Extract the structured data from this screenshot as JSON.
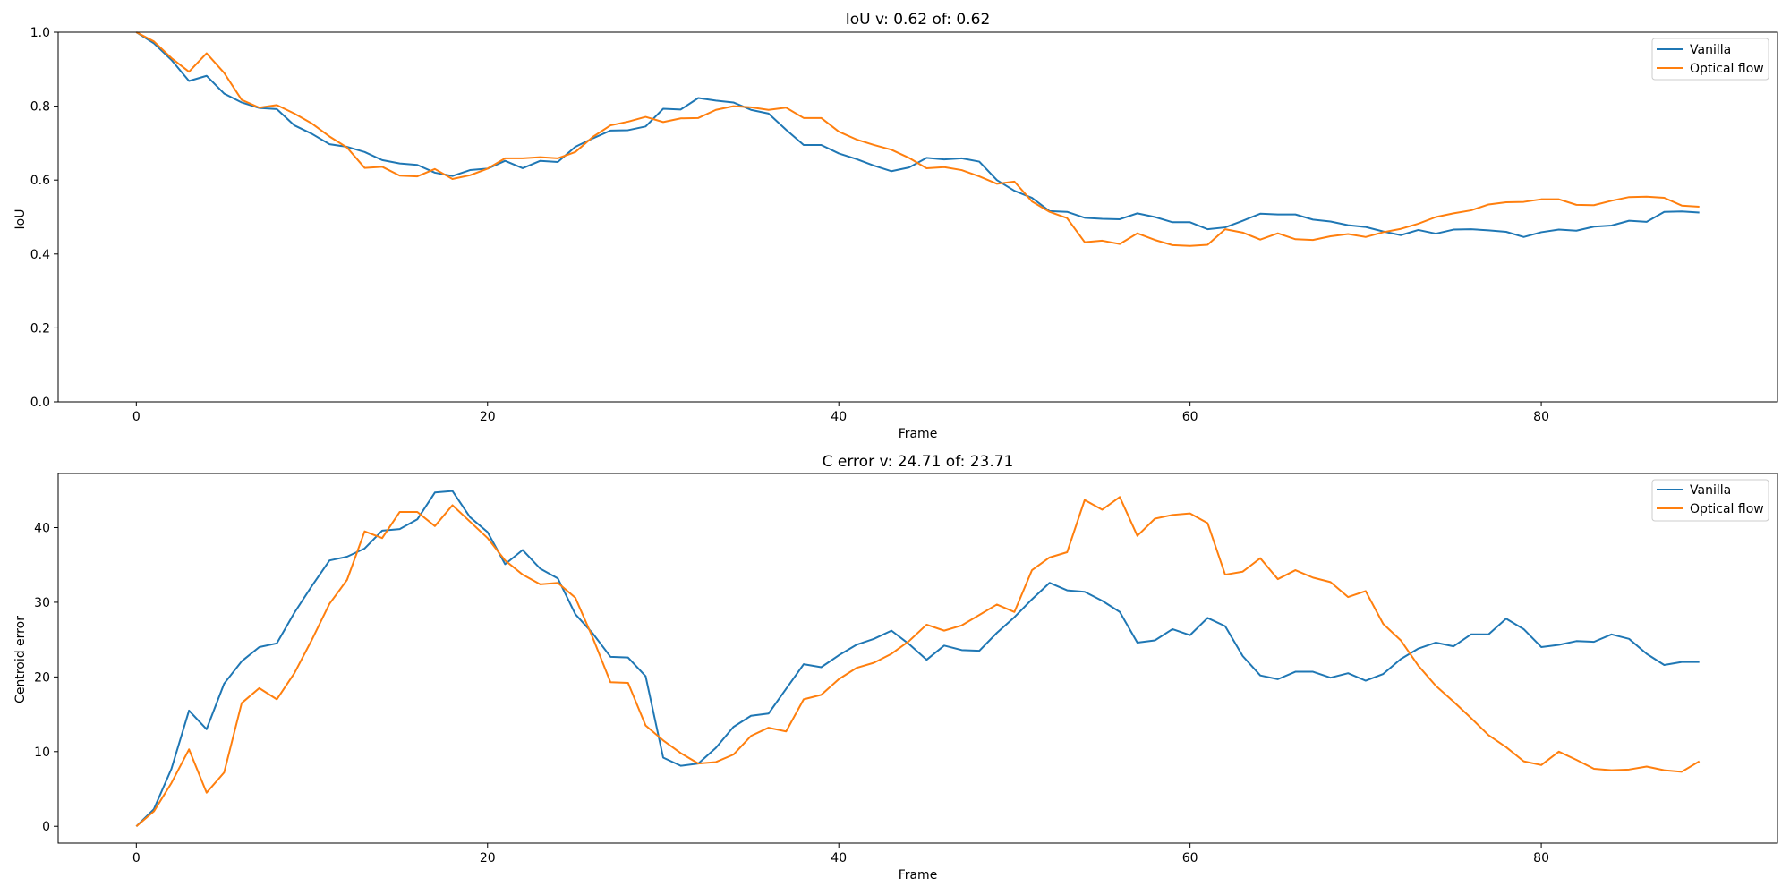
{
  "chart_data": [
    {
      "type": "line",
      "title": "IoU v: 0.62 of: 0.62",
      "xlabel": "Frame",
      "ylabel": "IoU",
      "xlim": [
        -4.45,
        93.45
      ],
      "ylim": [
        0.0,
        1.0
      ],
      "xticks": [
        0,
        20,
        40,
        60,
        80
      ],
      "yticks": [
        0.0,
        0.2,
        0.4,
        0.6,
        0.8,
        1.0
      ],
      "xtick_labels": [
        "0",
        "20",
        "40",
        "60",
        "80"
      ],
      "ytick_labels": [
        "0.0",
        "0.2",
        "0.4",
        "0.6",
        "0.8",
        "1.0"
      ],
      "grid": false,
      "legend_position": "top-right",
      "series": [
        {
          "name": "Vanilla",
          "color": "#1f77b4",
          "values": [
            1.0,
            0.97,
            0.925,
            0.868,
            0.882,
            0.834,
            0.81,
            0.795,
            0.792,
            0.748,
            0.725,
            0.697,
            0.69,
            0.676,
            0.654,
            0.645,
            0.641,
            0.62,
            0.611,
            0.627,
            0.631,
            0.652,
            0.632,
            0.652,
            0.649,
            0.69,
            0.713,
            0.734,
            0.735,
            0.745,
            0.793,
            0.791,
            0.822,
            0.815,
            0.81,
            0.79,
            0.78,
            0.736,
            0.695,
            0.695,
            0.672,
            0.657,
            0.639,
            0.624,
            0.634,
            0.66,
            0.656,
            0.659,
            0.65,
            0.6,
            0.571,
            0.552,
            0.516,
            0.514,
            0.498,
            0.495,
            0.494,
            0.51,
            0.5,
            0.486,
            0.486,
            0.467,
            0.472,
            0.49,
            0.509,
            0.507,
            0.507,
            0.493,
            0.488,
            0.478,
            0.473,
            0.461,
            0.451,
            0.465,
            0.455,
            0.466,
            0.467,
            0.464,
            0.46,
            0.446,
            0.459,
            0.466,
            0.463,
            0.474,
            0.477,
            0.49,
            0.487,
            0.514,
            0.515,
            0.512
          ]
        },
        {
          "name": "Optical flow",
          "color": "#ff7f0e",
          "values": [
            1.0,
            0.975,
            0.93,
            0.893,
            0.943,
            0.89,
            0.817,
            0.796,
            0.803,
            0.78,
            0.753,
            0.718,
            0.688,
            0.633,
            0.636,
            0.612,
            0.61,
            0.63,
            0.603,
            0.613,
            0.631,
            0.659,
            0.659,
            0.662,
            0.659,
            0.676,
            0.717,
            0.748,
            0.758,
            0.771,
            0.757,
            0.767,
            0.768,
            0.79,
            0.8,
            0.797,
            0.79,
            0.796,
            0.768,
            0.768,
            0.731,
            0.71,
            0.695,
            0.682,
            0.66,
            0.632,
            0.635,
            0.627,
            0.61,
            0.59,
            0.596,
            0.542,
            0.514,
            0.497,
            0.432,
            0.436,
            0.427,
            0.456,
            0.438,
            0.424,
            0.422,
            0.425,
            0.467,
            0.458,
            0.439,
            0.456,
            0.44,
            0.438,
            0.448,
            0.454,
            0.446,
            0.459,
            0.468,
            0.482,
            0.5,
            0.51,
            0.518,
            0.534,
            0.54,
            0.541,
            0.548,
            0.548,
            0.533,
            0.532,
            0.544,
            0.554,
            0.555,
            0.552,
            0.531,
            0.528
          ]
        }
      ]
    },
    {
      "type": "line",
      "title": "C error v: 24.71 of: 23.71",
      "xlabel": "Frame",
      "ylabel": "Centroid error",
      "xlim": [
        -4.45,
        93.45
      ],
      "ylim": [
        -2.25,
        47.25
      ],
      "xticks": [
        0,
        20,
        40,
        60,
        80
      ],
      "yticks": [
        0,
        10,
        20,
        30,
        40
      ],
      "xtick_labels": [
        "0",
        "20",
        "40",
        "60",
        "80"
      ],
      "ytick_labels": [
        "0",
        "10",
        "20",
        "30",
        "40"
      ],
      "grid": false,
      "legend_position": "top-right",
      "series": [
        {
          "name": "Vanilla",
          "color": "#1f77b4",
          "values": [
            0.0,
            2.3,
            7.7,
            15.5,
            13.0,
            19.1,
            22.1,
            24.0,
            24.5,
            28.6,
            32.2,
            35.6,
            36.1,
            37.2,
            39.6,
            39.8,
            41.1,
            44.7,
            44.9,
            41.4,
            39.4,
            35.1,
            37.0,
            34.5,
            33.2,
            28.4,
            25.8,
            22.7,
            22.6,
            20.1,
            9.2,
            8.1,
            8.4,
            10.5,
            13.3,
            14.8,
            15.1,
            18.4,
            21.7,
            21.3,
            22.9,
            24.3,
            25.1,
            26.2,
            24.4,
            22.3,
            24.2,
            23.6,
            23.5,
            25.9,
            28.0,
            30.4,
            32.6,
            31.6,
            31.4,
            30.2,
            28.7,
            24.6,
            24.9,
            26.4,
            25.6,
            27.9,
            26.8,
            22.8,
            20.2,
            19.7,
            20.7,
            20.7,
            19.9,
            20.5,
            19.5,
            20.4,
            22.4,
            23.8,
            24.6,
            24.1,
            25.7,
            25.7,
            27.8,
            26.4,
            24.0,
            24.3,
            24.8,
            24.7,
            25.7,
            25.1,
            23.1,
            21.6,
            22.0,
            22.0
          ]
        },
        {
          "name": "Optical flow",
          "color": "#ff7f0e",
          "values": [
            0.0,
            2.0,
            5.8,
            10.3,
            4.5,
            7.2,
            16.5,
            18.5,
            17.0,
            20.5,
            25.0,
            29.8,
            33.0,
            39.5,
            38.6,
            42.1,
            42.1,
            40.2,
            43.0,
            40.8,
            38.6,
            35.6,
            33.7,
            32.4,
            32.6,
            30.6,
            25.2,
            19.3,
            19.2,
            13.5,
            11.5,
            9.8,
            8.4,
            8.6,
            9.6,
            12.1,
            13.2,
            12.7,
            17.0,
            17.6,
            19.7,
            21.2,
            21.9,
            23.1,
            24.8,
            27.0,
            26.2,
            26.9,
            28.3,
            29.7,
            28.7,
            34.3,
            36.0,
            36.7,
            43.7,
            42.4,
            44.1,
            38.9,
            41.2,
            41.7,
            41.9,
            40.6,
            33.7,
            34.1,
            35.9,
            33.1,
            34.3,
            33.3,
            32.7,
            30.7,
            31.5,
            27.1,
            24.9,
            21.5,
            18.8,
            16.7,
            14.5,
            12.2,
            10.6,
            8.7,
            8.2,
            10.0,
            8.9,
            7.7,
            7.5,
            7.6,
            8.0,
            7.5,
            7.3,
            8.7
          ]
        }
      ]
    }
  ]
}
